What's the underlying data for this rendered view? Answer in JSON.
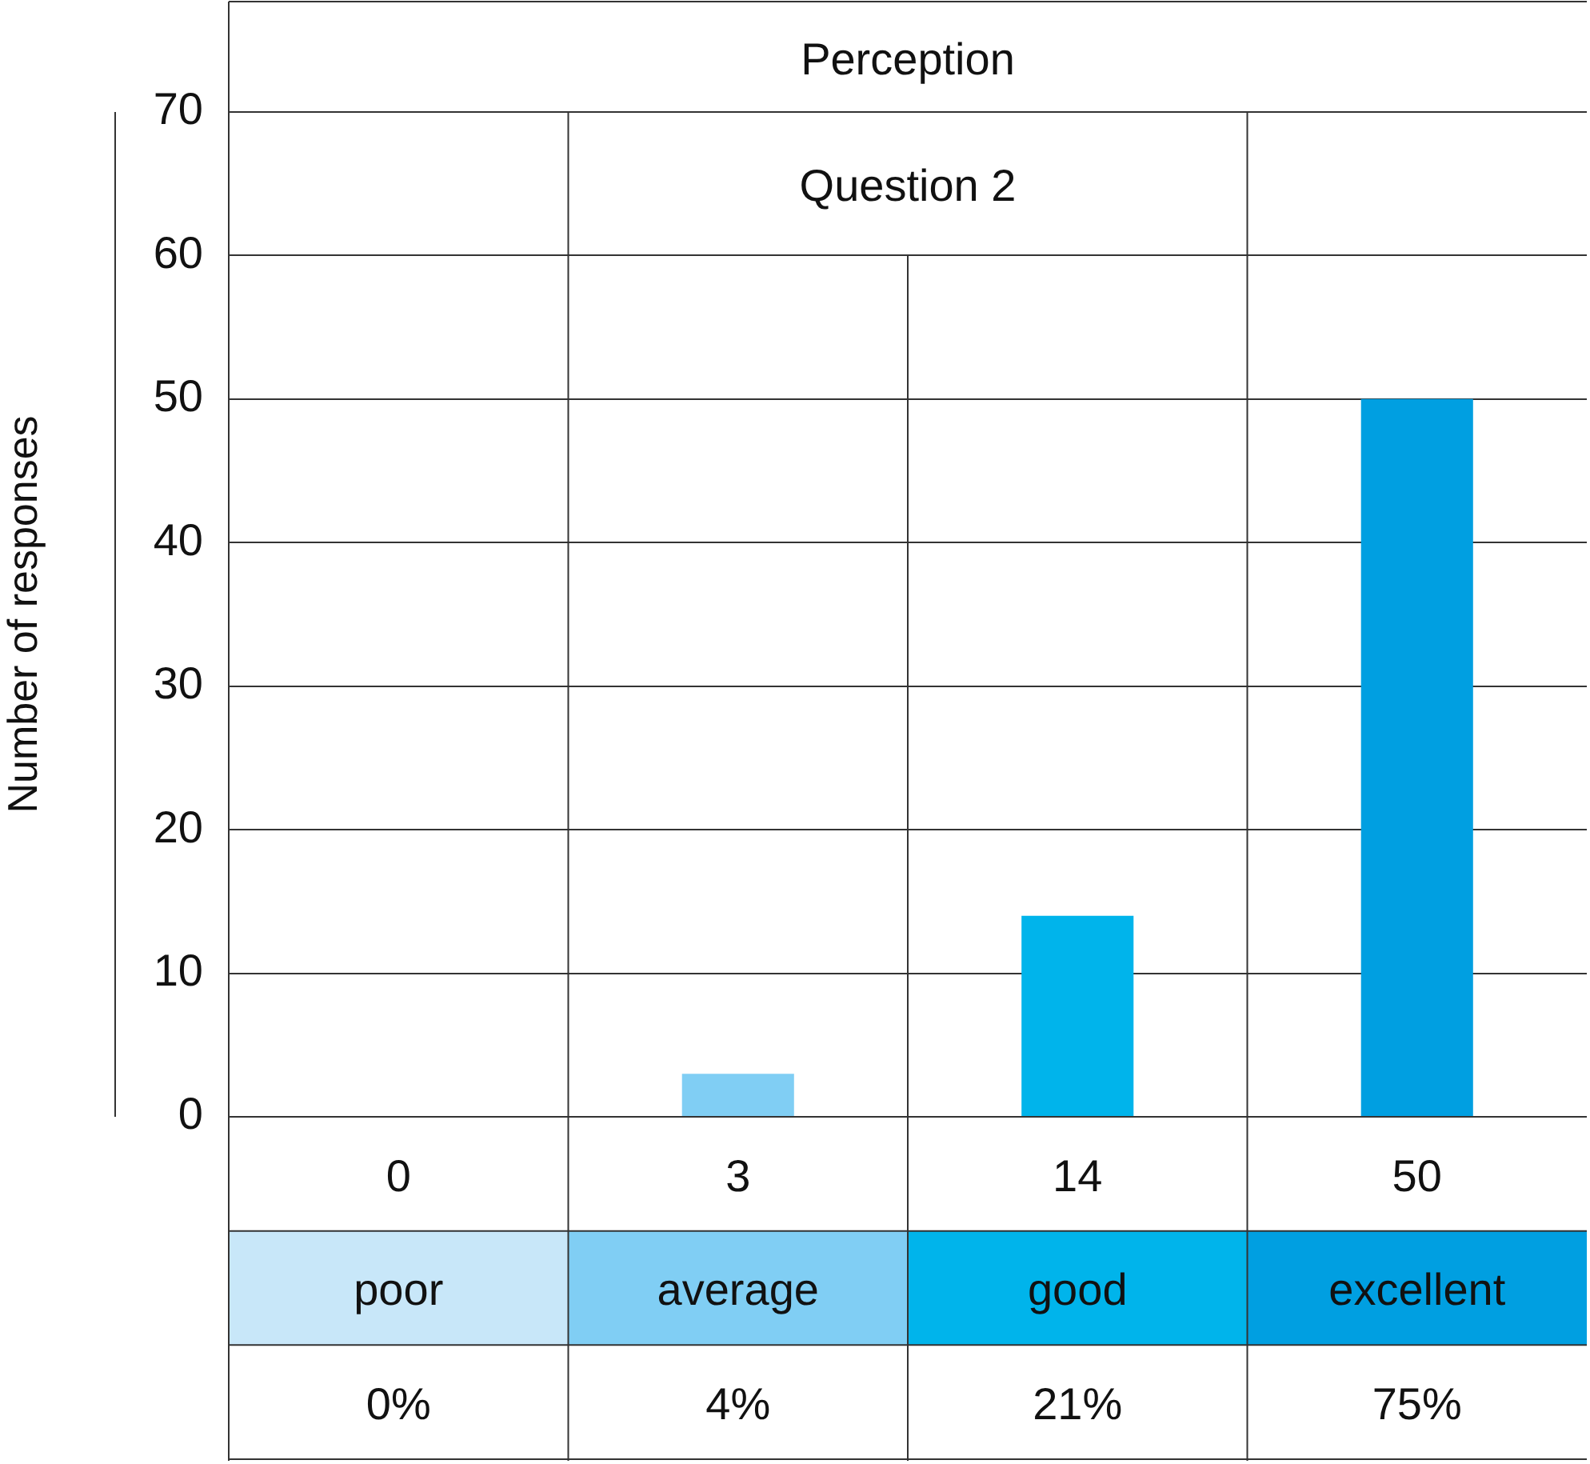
{
  "chart_data": {
    "type": "bar",
    "title": "Perception",
    "subtitle": "Question 2",
    "ylabel": "Number of responses",
    "categories": [
      "poor",
      "average",
      "good",
      "excellent"
    ],
    "values": [
      0,
      3,
      14,
      50
    ],
    "colors": [
      "#c8e7f9",
      "#80cef4",
      "#00b4eb",
      "#009fe1"
    ],
    "ylim": [
      0,
      70
    ],
    "yticks": [
      0,
      10,
      20,
      30,
      40,
      50,
      60,
      70
    ],
    "grid": "y",
    "data_labels": true,
    "annotations": [
      "0%",
      "4%",
      "21%",
      "75%"
    ]
  }
}
